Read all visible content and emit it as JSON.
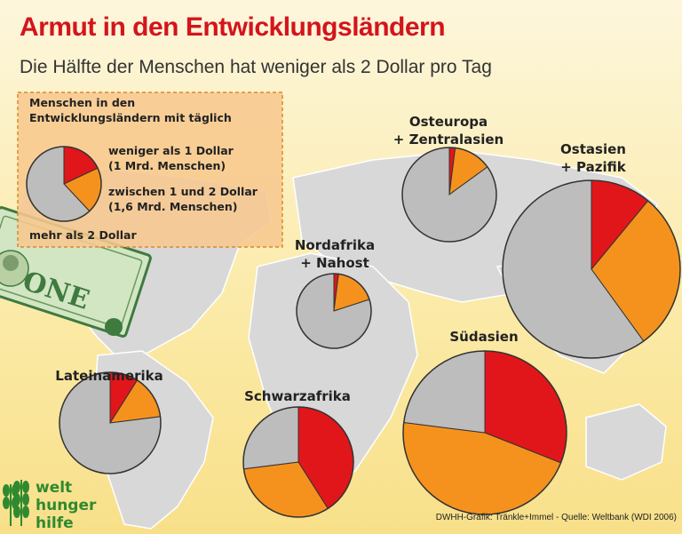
{
  "title": "Armut in den Entwicklungsländern",
  "subtitle": "Die Hälfte der Menschen hat weniger als 2 Dollar pro Tag",
  "colors": {
    "under_1": "#e0161b",
    "between_1_2": "#f5921e",
    "over_2": "#bdbdbd",
    "title": "#d4141c",
    "map": "#d8d8d8"
  },
  "legend": {
    "heading": [
      "Menschen in den",
      "Entwicklungsländern mit täglich"
    ],
    "under_1": [
      "weniger als 1 Dollar",
      "(1 Mrd. Menschen)"
    ],
    "between_1_2": [
      "zwischen 1 und 2 Dollar",
      "(1,6 Mrd. Menschen)"
    ],
    "over_2": [
      "mehr als 2 Dollar"
    ]
  },
  "chart_data": {
    "type": "pie",
    "categories": [
      "weniger als 1 Dollar",
      "zwischen 1 und 2 Dollar",
      "mehr als 2 Dollar"
    ],
    "legend_example": [
      18,
      20,
      62
    ],
    "regions": [
      {
        "name": [
          "Osteuropa",
          "+ Zentralasien"
        ],
        "values": [
          2,
          13,
          85
        ]
      },
      {
        "name": [
          "Ostasien",
          "+ Pazifik"
        ],
        "values": [
          11,
          29,
          60
        ]
      },
      {
        "name": [
          "Nordafrika",
          "+ Nahost"
        ],
        "values": [
          2,
          18,
          80
        ]
      },
      {
        "name": [
          "Lateinamerika"
        ],
        "values": [
          9,
          14,
          77
        ]
      },
      {
        "name": [
          "Schwarzafrika"
        ],
        "values": [
          41,
          32,
          27
        ]
      },
      {
        "name": [
          "Südasien"
        ],
        "values": [
          31,
          46,
          23
        ]
      }
    ]
  },
  "credit": "DWHH-Grafik: Tränkle+Immel - Quelle: Weltbank (WDI 2006)",
  "logo": {
    "lines": [
      "welt",
      "hunger",
      "hilfe"
    ],
    "icon": "wheat-icon"
  },
  "banknote": {
    "label": "ONE",
    "icon": "dollar-bill-icon"
  }
}
